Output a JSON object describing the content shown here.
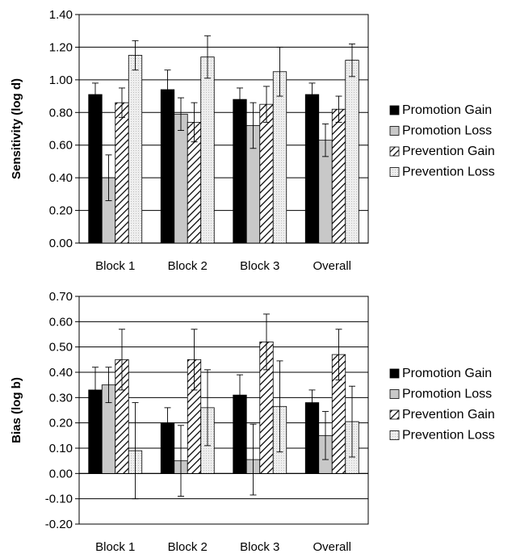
{
  "chart_data": [
    {
      "type": "bar",
      "ylabel": "Sensitivity (log d)",
      "ylim": [
        0,
        1.4
      ],
      "ytick_step": 0.2,
      "ytick_labels": [
        "0.00",
        "0.20",
        "0.40",
        "0.60",
        "0.80",
        "1.00",
        "1.20",
        "1.40"
      ],
      "categories": [
        "Block 1",
        "Block 2",
        "Block 3",
        "Overall"
      ],
      "legend_position": "right",
      "grid": true,
      "series": [
        {
          "name": "Promotion Gain",
          "values": [
            0.91,
            0.94,
            0.88,
            0.91
          ],
          "errors": [
            0.07,
            0.12,
            0.07,
            0.07
          ]
        },
        {
          "name": "Promotion Loss",
          "values": [
            0.4,
            0.79,
            0.72,
            0.63
          ],
          "errors": [
            0.14,
            0.1,
            0.14,
            0.1
          ]
        },
        {
          "name": "Prevention Gain",
          "values": [
            0.86,
            0.74,
            0.85,
            0.82
          ],
          "errors": [
            0.09,
            0.12,
            0.11,
            0.08
          ]
        },
        {
          "name": "Prevention Loss",
          "values": [
            1.15,
            1.14,
            1.05,
            1.12
          ],
          "errors": [
            0.09,
            0.13,
            0.15,
            0.1
          ]
        }
      ]
    },
    {
      "type": "bar",
      "ylabel": "Bias (log b)",
      "ylim": [
        -0.2,
        0.7
      ],
      "ytick_step": 0.1,
      "ytick_labels": [
        "-0.20",
        "-0.10",
        "0.00",
        "0.10",
        "0.20",
        "0.30",
        "0.40",
        "0.50",
        "0.60",
        "0.70"
      ],
      "categories": [
        "Block 1",
        "Block 2",
        "Block 3",
        "Overall"
      ],
      "legend_position": "right",
      "grid": true,
      "series": [
        {
          "name": "Promotion Gain",
          "values": [
            0.33,
            0.2,
            0.31,
            0.28
          ],
          "errors": [
            0.09,
            0.06,
            0.08,
            0.05
          ]
        },
        {
          "name": "Promotion Loss",
          "values": [
            0.35,
            0.05,
            0.055,
            0.15
          ],
          "errors": [
            0.07,
            0.14,
            0.14,
            0.095
          ]
        },
        {
          "name": "Prevention Gain",
          "values": [
            0.45,
            0.45,
            0.52,
            0.47
          ],
          "errors": [
            0.12,
            0.12,
            0.11,
            0.1
          ]
        },
        {
          "name": "Prevention Loss",
          "values": [
            0.09,
            0.26,
            0.265,
            0.205
          ],
          "errors": [
            0.19,
            0.15,
            0.18,
            0.14
          ]
        }
      ]
    }
  ]
}
